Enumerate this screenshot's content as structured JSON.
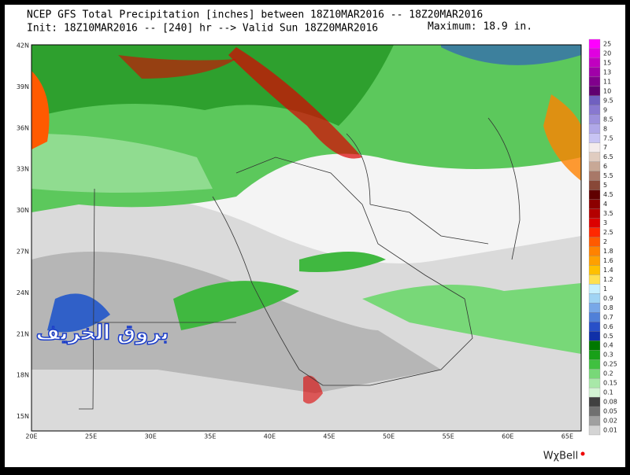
{
  "header": {
    "title": "NCEP GFS Total Precipitation [inches] between 18Z10MAR2016 -- 18Z20MAR2016",
    "subtitle": "Init: 18Z10MAR2016 -- [240] hr --> Valid Sun 18Z20MAR2016",
    "maximum": "Maximum: 18.9 in."
  },
  "map": {
    "lat_labels": [
      "42N",
      "39N",
      "36N",
      "33N",
      "30N",
      "27N",
      "24N",
      "21N",
      "18N",
      "15N"
    ],
    "lon_labels": [
      "20E",
      "25E",
      "30E",
      "35E",
      "40E",
      "45E",
      "50E",
      "55E",
      "60E",
      "65E"
    ],
    "watermark": "بروق الخريف"
  },
  "colorbar": [
    {
      "label": "25",
      "color": "#ff00ff"
    },
    {
      "label": "20",
      "color": "#e000e0"
    },
    {
      "label": "15",
      "color": "#c000c0"
    },
    {
      "label": "13",
      "color": "#a000a8"
    },
    {
      "label": "11",
      "color": "#80008c"
    },
    {
      "label": "10",
      "color": "#600070"
    },
    {
      "label": "9.5",
      "color": "#7060c0"
    },
    {
      "label": "9",
      "color": "#8878d0"
    },
    {
      "label": "8.5",
      "color": "#9c90dc"
    },
    {
      "label": "8",
      "color": "#b0a8e8"
    },
    {
      "label": "7.5",
      "color": "#c8c4f4"
    },
    {
      "label": "7",
      "color": "#f4ecec"
    },
    {
      "label": "6.5",
      "color": "#e0ccc0"
    },
    {
      "label": "6",
      "color": "#c8a896"
    },
    {
      "label": "5.5",
      "color": "#a87868"
    },
    {
      "label": "5",
      "color": "#884838"
    },
    {
      "label": "4.5",
      "color": "#600000"
    },
    {
      "label": "4",
      "color": "#8c0000"
    },
    {
      "label": "3.5",
      "color": "#b40000"
    },
    {
      "label": "3",
      "color": "#dc0000"
    },
    {
      "label": "2.5",
      "color": "#ff2800"
    },
    {
      "label": "2",
      "color": "#ff5a00"
    },
    {
      "label": "1.8",
      "color": "#ff8200"
    },
    {
      "label": "1.6",
      "color": "#ffa000"
    },
    {
      "label": "1.4",
      "color": "#ffc000"
    },
    {
      "label": "1.2",
      "color": "#ffe050"
    },
    {
      "label": "1",
      "color": "#c8f0ff"
    },
    {
      "label": "0.9",
      "color": "#a0d4f4"
    },
    {
      "label": "0.8",
      "color": "#78a8e8"
    },
    {
      "label": "0.7",
      "color": "#5080d8"
    },
    {
      "label": "0.6",
      "color": "#2850c8"
    },
    {
      "label": "0.5",
      "color": "#1030a8"
    },
    {
      "label": "0.4",
      "color": "#007800"
    },
    {
      "label": "0.3",
      "color": "#18a018"
    },
    {
      "label": "0.25",
      "color": "#40c040"
    },
    {
      "label": "0.2",
      "color": "#78d878"
    },
    {
      "label": "0.15",
      "color": "#a8e8a8"
    },
    {
      "label": "0.1",
      "color": "#d4f4d4"
    },
    {
      "label": "0.08",
      "color": "#404040"
    },
    {
      "label": "0.05",
      "color": "#707070"
    },
    {
      "label": "0.02",
      "color": "#a0a0a0"
    },
    {
      "label": "0.01",
      "color": "#d4d4d4"
    }
  ],
  "logo": "WχBell"
}
